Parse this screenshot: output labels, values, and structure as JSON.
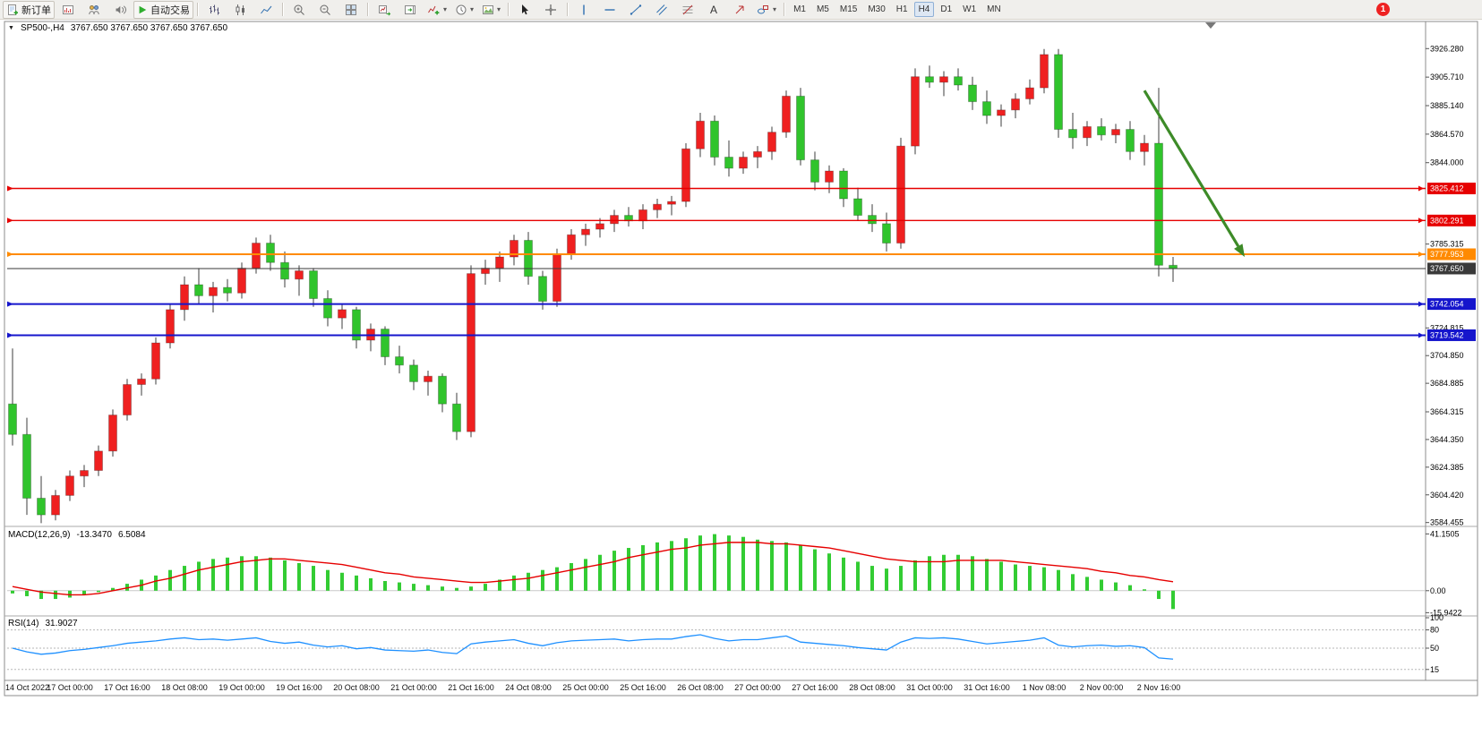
{
  "toolbar": {
    "new_order_label": "新订单",
    "autotrading_label": "自动交易",
    "text_tool_label": "A",
    "timeframes": [
      "M1",
      "M5",
      "M15",
      "M30",
      "H1",
      "H4",
      "D1",
      "W1",
      "MN"
    ],
    "active_timeframe": "H4",
    "notification_badge": "1",
    "icon_names": [
      "new-order-icon",
      "charts-window-icon",
      "profiles-icon",
      "alerts-icon",
      "autotrading-play-icon",
      "bar-chart-icon",
      "candlestick-chart-icon",
      "line-chart-icon",
      "zoom-in-icon",
      "zoom-out-icon",
      "tile-windows-icon",
      "auto-scroll-icon",
      "chart-shift-icon",
      "add-indicator-icon",
      "periods-clock-icon",
      "templates-icon",
      "cursor-icon",
      "crosshair-icon",
      "vertical-line-icon",
      "horizontal-line-icon",
      "trendline-icon",
      "equidistant-channel-icon",
      "fibonacci-icon",
      "text-tool-icon",
      "arrows-tool-icon",
      "shapes-icon"
    ]
  },
  "chart_data": [
    {
      "type": "candlestick",
      "title": "SP500-,H4",
      "ohlc_display": "3767.650 3767.650 3767.650 3767.650",
      "ylim": [
        3583.6,
        3935.5
      ],
      "up_color": "#ef2020",
      "down_color": "#30c42c",
      "wick_color": "#3c3c3c",
      "x_labels": [
        "14 Oct 2022",
        "17 Oct 00:00",
        "17 Oct 16:00",
        "18 Oct 08:00",
        "19 Oct 00:00",
        "19 Oct 16:00",
        "20 Oct 08:00",
        "21 Oct 00:00",
        "21 Oct 16:00",
        "24 Oct 08:00",
        "25 Oct 00:00",
        "25 Oct 16:00",
        "26 Oct 08:00",
        "27 Oct 00:00",
        "27 Oct 16:00",
        "28 Oct 08:00",
        "31 Oct 00:00",
        "31 Oct 16:00",
        "1 Nov 08:00",
        "2 Nov 00:00",
        "2 Nov 16:00"
      ],
      "y_ticks": [
        {
          "label": "3926.280",
          "price": 3926.28
        },
        {
          "label": "3905.710",
          "price": 3905.71
        },
        {
          "label": "3885.140",
          "price": 3885.14
        },
        {
          "label": "3864.570",
          "price": 3864.57
        },
        {
          "label": "3844.000",
          "price": 3844.0
        },
        {
          "label": "3785.315",
          "price": 3785.315
        },
        {
          "label": "3724.815",
          "price": 3724.815
        },
        {
          "label": "3704.850",
          "price": 3704.85
        },
        {
          "label": "3684.885",
          "price": 3684.885
        },
        {
          "label": "3664.315",
          "price": 3664.315
        },
        {
          "label": "3644.350",
          "price": 3644.35
        },
        {
          "label": "3624.385",
          "price": 3624.385
        },
        {
          "label": "3604.420",
          "price": 3604.42
        },
        {
          "label": "3584.455",
          "price": 3584.455
        }
      ],
      "horizontal_lines": [
        {
          "price": 3825.412,
          "label": "3825.412",
          "color": "#e60000",
          "width": 1.4
        },
        {
          "price": 3802.291,
          "label": "3802.291",
          "color": "#e60000",
          "width": 1.4
        },
        {
          "price": 3777.953,
          "label": "3777.953",
          "color": "#ff8a00",
          "width": 2
        },
        {
          "price": 3742.054,
          "label": "3742.054",
          "color": "#1515cc",
          "width": 2
        },
        {
          "price": 3719.542,
          "label": "3719.542",
          "color": "#1515cc",
          "width": 2
        }
      ],
      "current_price": {
        "value": 3767.65,
        "label": "3767.650",
        "color": "#3a3a3a"
      },
      "arrow": {
        "from_bar": 79,
        "from_price": 3896,
        "to_bar": 86,
        "to_price": 3776,
        "color": "#3d8b28"
      },
      "candles": [
        [
          3670,
          3710,
          3640,
          3648
        ],
        [
          3648,
          3660,
          3590,
          3602
        ],
        [
          3602,
          3618,
          3584,
          3590
        ],
        [
          3590,
          3608,
          3586,
          3604
        ],
        [
          3604,
          3622,
          3600,
          3618
        ],
        [
          3618,
          3626,
          3610,
          3622
        ],
        [
          3622,
          3640,
          3618,
          3636
        ],
        [
          3636,
          3666,
          3632,
          3662
        ],
        [
          3662,
          3688,
          3658,
          3684
        ],
        [
          3684,
          3692,
          3676,
          3688
        ],
        [
          3688,
          3718,
          3684,
          3714
        ],
        [
          3714,
          3742,
          3710,
          3738
        ],
        [
          3738,
          3762,
          3730,
          3756
        ],
        [
          3756,
          3768,
          3742,
          3748
        ],
        [
          3748,
          3758,
          3736,
          3754
        ],
        [
          3754,
          3760,
          3744,
          3750
        ],
        [
          3750,
          3772,
          3746,
          3768
        ],
        [
          3768,
          3790,
          3764,
          3786
        ],
        [
          3786,
          3792,
          3766,
          3772
        ],
        [
          3772,
          3780,
          3754,
          3760
        ],
        [
          3760,
          3770,
          3748,
          3766
        ],
        [
          3766,
          3768,
          3740,
          3746
        ],
        [
          3746,
          3752,
          3726,
          3732
        ],
        [
          3732,
          3742,
          3724,
          3738
        ],
        [
          3738,
          3740,
          3710,
          3716
        ],
        [
          3716,
          3728,
          3708,
          3724
        ],
        [
          3724,
          3726,
          3698,
          3704
        ],
        [
          3704,
          3712,
          3692,
          3698
        ],
        [
          3698,
          3702,
          3680,
          3686
        ],
        [
          3686,
          3694,
          3676,
          3690
        ],
        [
          3690,
          3692,
          3664,
          3670
        ],
        [
          3670,
          3678,
          3644,
          3650
        ],
        [
          3650,
          3770,
          3646,
          3764
        ],
        [
          3764,
          3774,
          3756,
          3768
        ],
        [
          3768,
          3780,
          3758,
          3776
        ],
        [
          3776,
          3792,
          3770,
          3788
        ],
        [
          3788,
          3794,
          3756,
          3762
        ],
        [
          3762,
          3766,
          3738,
          3744
        ],
        [
          3744,
          3782,
          3740,
          3778
        ],
        [
          3778,
          3796,
          3774,
          3792
        ],
        [
          3792,
          3800,
          3784,
          3796
        ],
        [
          3796,
          3804,
          3790,
          3800
        ],
        [
          3800,
          3810,
          3794,
          3806
        ],
        [
          3806,
          3812,
          3798,
          3802
        ],
        [
          3802,
          3814,
          3796,
          3810
        ],
        [
          3810,
          3818,
          3804,
          3814
        ],
        [
          3814,
          3820,
          3806,
          3816
        ],
        [
          3816,
          3858,
          3812,
          3854
        ],
        [
          3854,
          3880,
          3848,
          3874
        ],
        [
          3874,
          3878,
          3842,
          3848
        ],
        [
          3848,
          3860,
          3834,
          3840
        ],
        [
          3840,
          3852,
          3836,
          3848
        ],
        [
          3848,
          3856,
          3840,
          3852
        ],
        [
          3852,
          3870,
          3846,
          3866
        ],
        [
          3866,
          3896,
          3862,
          3892
        ],
        [
          3892,
          3898,
          3842,
          3846
        ],
        [
          3846,
          3852,
          3824,
          3830
        ],
        [
          3830,
          3842,
          3822,
          3838
        ],
        [
          3838,
          3840,
          3812,
          3818
        ],
        [
          3818,
          3826,
          3802,
          3806
        ],
        [
          3806,
          3814,
          3794,
          3800
        ],
        [
          3800,
          3808,
          3780,
          3786
        ],
        [
          3786,
          3862,
          3782,
          3856
        ],
        [
          3856,
          3912,
          3850,
          3906
        ],
        [
          3906,
          3914,
          3898,
          3902
        ],
        [
          3902,
          3910,
          3892,
          3906
        ],
        [
          3906,
          3912,
          3896,
          3900
        ],
        [
          3900,
          3906,
          3882,
          3888
        ],
        [
          3888,
          3896,
          3872,
          3878
        ],
        [
          3878,
          3886,
          3870,
          3882
        ],
        [
          3882,
          3894,
          3876,
          3890
        ],
        [
          3890,
          3904,
          3886,
          3898
        ],
        [
          3898,
          3926,
          3894,
          3922
        ],
        [
          3922,
          3926,
          3862,
          3868
        ],
        [
          3868,
          3880,
          3854,
          3862
        ],
        [
          3862,
          3874,
          3856,
          3870
        ],
        [
          3870,
          3876,
          3860,
          3864
        ],
        [
          3864,
          3872,
          3858,
          3868
        ],
        [
          3868,
          3874,
          3846,
          3852
        ],
        [
          3852,
          3864,
          3842,
          3858
        ],
        [
          3858,
          3898,
          3762,
          3770
        ],
        [
          3770,
          3776,
          3758,
          3767.65
        ]
      ]
    },
    {
      "type": "bar",
      "title": "MACD(12,26,9)",
      "value_main": "-13.3470",
      "value_signal": "6.5084",
      "ylim": [
        -17,
        44
      ],
      "colors": {
        "histogram": "#33cc33",
        "signal": "#e60000"
      },
      "y_ticks": [
        {
          "label": "41.1505",
          "value": 41.1505
        },
        {
          "label": "0.00",
          "value": 0
        },
        {
          "label": "-15.9422",
          "value": -15.9422
        }
      ],
      "histogram": [
        -2,
        -4,
        -6,
        -6,
        -5,
        -3,
        -1,
        2,
        5,
        8,
        11,
        15,
        18,
        21,
        23,
        24,
        25,
        25,
        24,
        22,
        20,
        18,
        15,
        13,
        11,
        9,
        7,
        6,
        5,
        4,
        3,
        2,
        3,
        5,
        8,
        11,
        13,
        15,
        17,
        20,
        23,
        26,
        29,
        31,
        33,
        35,
        36,
        38,
        40,
        41,
        40,
        39,
        37,
        36,
        35,
        33,
        30,
        27,
        24,
        21,
        18,
        16,
        18,
        22,
        25,
        26,
        26,
        25,
        23,
        21,
        19,
        18,
        17,
        15,
        12,
        10,
        8,
        6,
        4,
        1,
        -6,
        -13.3
      ],
      "signal": [
        3,
        1,
        -1,
        -2,
        -3,
        -3,
        -2,
        0,
        2,
        4,
        7,
        9,
        12,
        15,
        17,
        19,
        21,
        22,
        23,
        23,
        22,
        21,
        20,
        19,
        17,
        15,
        13,
        12,
        10,
        9,
        8,
        7,
        6,
        6,
        7,
        8,
        9,
        11,
        13,
        15,
        17,
        19,
        21,
        24,
        26,
        28,
        30,
        31,
        33,
        34,
        35,
        35,
        35,
        34,
        34,
        33,
        32,
        31,
        29,
        27,
        25,
        23,
        22,
        21,
        21,
        21,
        22,
        22,
        22,
        22,
        21,
        20,
        19,
        18,
        17,
        16,
        14,
        13,
        11,
        10,
        8,
        6.5
      ]
    },
    {
      "type": "line",
      "title": "RSI(14)",
      "value": "31.9027",
      "ylim": [
        0,
        100
      ],
      "color": "#1e90ff",
      "levels": [
        80,
        50,
        15
      ],
      "y_ticks": [
        {
          "label": "100",
          "value": 100
        },
        {
          "label": "80",
          "value": 80
        },
        {
          "label": "50",
          "value": 50
        },
        {
          "label": "15",
          "value": 15
        }
      ],
      "values": [
        50,
        44,
        40,
        42,
        46,
        48,
        51,
        54,
        58,
        60,
        62,
        65,
        67,
        64,
        65,
        63,
        65,
        67,
        61,
        58,
        60,
        55,
        52,
        54,
        49,
        51,
        47,
        46,
        45,
        47,
        43,
        41,
        57,
        60,
        62,
        64,
        58,
        54,
        59,
        62,
        63,
        64,
        65,
        62,
        64,
        65,
        65,
        69,
        72,
        66,
        62,
        64,
        64,
        67,
        70,
        60,
        58,
        56,
        54,
        51,
        49,
        47,
        60,
        67,
        66,
        67,
        65,
        61,
        57,
        59,
        61,
        63,
        67,
        55,
        52,
        54,
        55,
        53,
        54,
        51,
        34,
        32
      ]
    }
  ]
}
